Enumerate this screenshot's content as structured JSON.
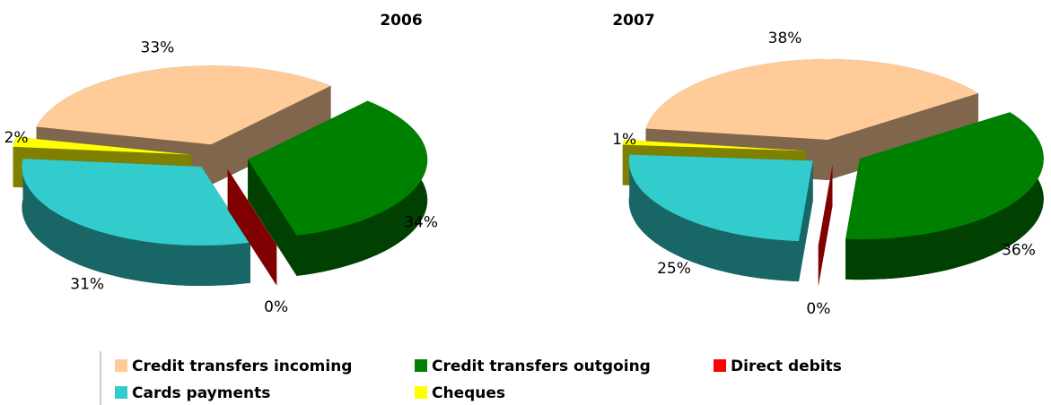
{
  "chart_data": [
    {
      "type": "pie3d",
      "title": "2006",
      "categories": [
        "Credit transfers incoming",
        "Credit transfers outgoing",
        "Direct debits",
        "Cards payments",
        "Cheques"
      ],
      "values": [
        33,
        34,
        0,
        31,
        2
      ],
      "value_labels": [
        "33%",
        "34%",
        "0%",
        "31%",
        "2%"
      ],
      "colors": [
        "#FFCC99",
        "#008000",
        "#FF0000",
        "#33CCCC",
        "#FFFF00"
      ]
    },
    {
      "type": "pie3d",
      "title": "2007",
      "categories": [
        "Credit transfers incoming",
        "Credit transfers outgoing",
        "Direct debits",
        "Cards payments",
        "Cheques"
      ],
      "values": [
        38,
        36,
        0,
        25,
        1
      ],
      "value_labels": [
        "38%",
        "36%",
        "0%",
        "25%",
        "1%"
      ],
      "colors": [
        "#FFCC99",
        "#008000",
        "#FF0000",
        "#33CCCC",
        "#FFFF00"
      ]
    }
  ]
}
